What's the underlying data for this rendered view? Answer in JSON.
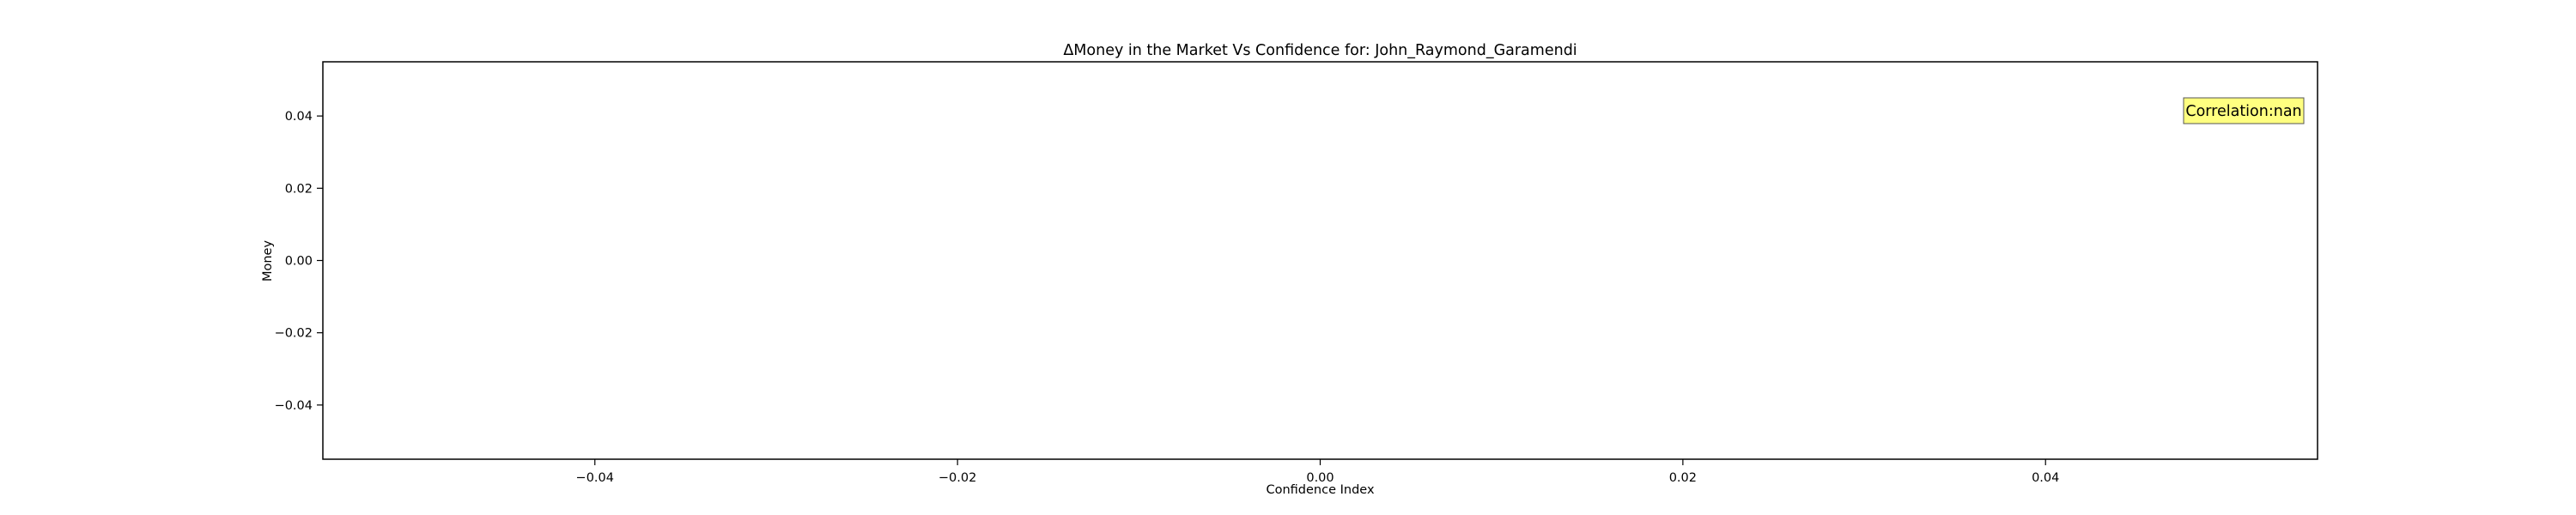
{
  "chart_data": {
    "type": "scatter",
    "title": "ΔMoney in the Market Vs Confidence for: John_Raymond_Garamendi",
    "xlabel": "Confidence Index",
    "ylabel": "Money",
    "xlim": [
      -0.055,
      0.055
    ],
    "ylim": [
      -0.055,
      0.055
    ],
    "xticks": [
      -0.04,
      -0.02,
      0.0,
      0.02,
      0.04
    ],
    "yticks": [
      -0.04,
      -0.02,
      0.0,
      0.02,
      0.04
    ],
    "xtick_labels": [
      "−0.04",
      "−0.02",
      "0.00",
      "0.02",
      "0.04"
    ],
    "ytick_labels": [
      "−0.04",
      "−0.02",
      "0.00",
      "0.02",
      "0.04"
    ],
    "x": [],
    "y": [],
    "grid": false,
    "annotation": {
      "text": "Correlation:nan",
      "placement": "top-right",
      "box_color": "#ffff80"
    }
  }
}
